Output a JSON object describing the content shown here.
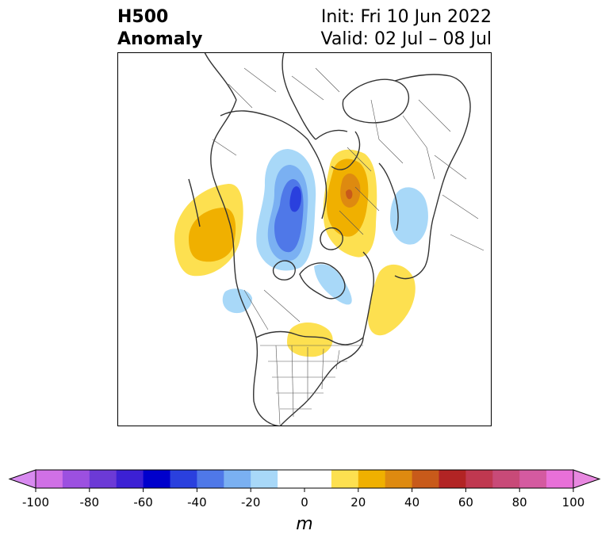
{
  "header": {
    "title_line1": "H500",
    "title_line2": "Anomaly",
    "init_text": "Init: Fri 10 Jun 2022",
    "valid_text": "Valid: 02 Jul – 08 Jul"
  },
  "colorbar": {
    "unit": "m",
    "min": -100,
    "max": 100,
    "step": 10,
    "tick_labels": [
      "-100",
      "-80",
      "-60",
      "-40",
      "-20",
      "0",
      "20",
      "40",
      "60",
      "80",
      "100"
    ],
    "colors": [
      "#d070e6",
      "#9c50e0",
      "#6c3ad6",
      "#3c20d4",
      "#0000cc",
      "#2a40de",
      "#4f78e8",
      "#7ab0f2",
      "#a8d8f8",
      "#ffffff",
      "#ffffff",
      "#fde050",
      "#f0b000",
      "#de8a10",
      "#c85a1a",
      "#b22424",
      "#c03850",
      "#c84a78",
      "#d45aa0",
      "#e870d8"
    ],
    "under_color": "#d88af0",
    "over_color": "#e888e0"
  },
  "map": {
    "projection": "polar-stereographic",
    "region": "Northern Hemisphere (North America / Arctic)",
    "fill_levels_m": [
      -30,
      -20,
      -10,
      10,
      20,
      30
    ]
  }
}
